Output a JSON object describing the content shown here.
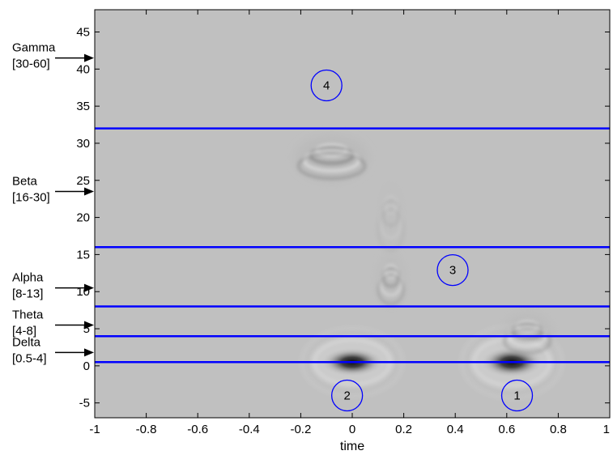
{
  "chart_data": {
    "type": "heatmap",
    "title": "",
    "xlabel": "time",
    "ylabel": "",
    "xlim": [
      -1,
      1
    ],
    "ylim": [
      -7,
      48
    ],
    "x_ticks": [
      "-1",
      "-0.8",
      "-0.6",
      "-0.4",
      "-0.2",
      "0",
      "0.2",
      "0.4",
      "0.6",
      "0.8",
      "1"
    ],
    "x_tick_values": [
      -1,
      -0.8,
      -0.6,
      -0.4,
      -0.2,
      0,
      0.2,
      0.4,
      0.6,
      0.8,
      1
    ],
    "y_ticks": [
      "-5",
      "0",
      "5",
      "10",
      "15",
      "20",
      "25",
      "30",
      "35",
      "40",
      "45"
    ],
    "y_tick_values": [
      -5,
      0,
      5,
      10,
      15,
      20,
      25,
      30,
      35,
      40,
      45
    ],
    "background_color": "#c0c0c0",
    "band_line_color": "#0000ff",
    "band_boundaries": [
      0.5,
      4,
      8,
      16,
      32
    ],
    "bands": [
      {
        "name": "Gamma",
        "range": "[30-60]",
        "arrow_y": 41.5
      },
      {
        "name": "Beta",
        "range": "[16-30]",
        "arrow_y": 23.5
      },
      {
        "name": "Alpha",
        "range": "[8-13]",
        "arrow_y": 10.5
      },
      {
        "name": "Theta",
        "range": "[4-8]",
        "arrow_y": 5.5
      },
      {
        "name": "Delta",
        "range": "[0.5-4]",
        "arrow_y": 1.8
      }
    ],
    "markers": [
      {
        "label": "1",
        "x": 0.64,
        "y": -4
      },
      {
        "label": "2",
        "x": -0.02,
        "y": -4
      },
      {
        "label": "3",
        "x": 0.39,
        "y": 12.9
      },
      {
        "label": "4",
        "x": -0.1,
        "y": 37.8
      }
    ],
    "activity_blobs": [
      {
        "x": 0.0,
        "y": 0.5,
        "sx": 0.12,
        "sy": 1.6,
        "intensity": 0.95,
        "kind": "dark"
      },
      {
        "x": 0.62,
        "y": 0.5,
        "sx": 0.12,
        "sy": 1.7,
        "intensity": 0.95,
        "kind": "dark"
      },
      {
        "x": 0.68,
        "y": 4.3,
        "sx": 0.09,
        "sy": 2.6,
        "intensity": 0.55,
        "kind": "ring"
      },
      {
        "x": 0.15,
        "y": 11.5,
        "sx": 0.05,
        "sy": 3.2,
        "intensity": 0.45,
        "kind": "ring"
      },
      {
        "x": 0.15,
        "y": 20.0,
        "sx": 0.05,
        "sy": 4.5,
        "intensity": 0.15,
        "kind": "ring"
      },
      {
        "x": -0.08,
        "y": 28.0,
        "sx": 0.13,
        "sy": 2.8,
        "intensity": 0.7,
        "kind": "ring"
      }
    ]
  }
}
